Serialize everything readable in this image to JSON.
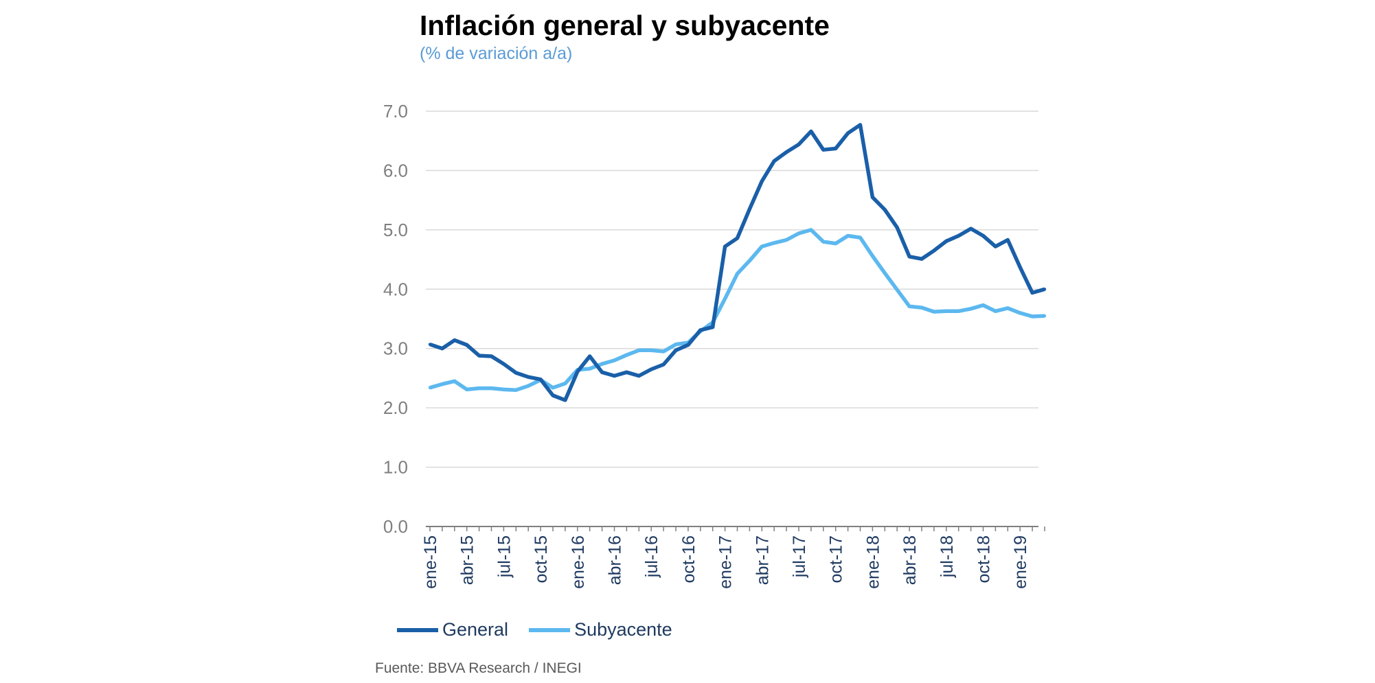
{
  "header": {
    "title": "Inflación general y subyacente",
    "subtitle": "(% de variación a/a)"
  },
  "colors": {
    "general": "#1a5fa8",
    "subyacente": "#5cb8ef",
    "grid": "#d9d9d9",
    "subtitle": "#5b9bd5"
  },
  "source": "Fuente: BBVA Research / INEGI",
  "chart_data": {
    "type": "line",
    "title": "Inflación general y subyacente",
    "subtitle": "(% de variación a/a)",
    "xlabel": "",
    "ylabel": "",
    "ylim": [
      0,
      7
    ],
    "yticks": [
      "0.0",
      "1.0",
      "2.0",
      "3.0",
      "4.0",
      "5.0",
      "6.0",
      "7.0"
    ],
    "grid": true,
    "legend_position": "bottom",
    "x": [
      "ene-15",
      "feb-15",
      "mar-15",
      "abr-15",
      "may-15",
      "jun-15",
      "jul-15",
      "ago-15",
      "sep-15",
      "oct-15",
      "nov-15",
      "dic-15",
      "ene-16",
      "feb-16",
      "mar-16",
      "abr-16",
      "may-16",
      "jun-16",
      "jul-16",
      "ago-16",
      "sep-16",
      "oct-16",
      "nov-16",
      "dic-16",
      "ene-17",
      "feb-17",
      "mar-17",
      "abr-17",
      "may-17",
      "jun-17",
      "jul-17",
      "ago-17",
      "sep-17",
      "oct-17",
      "nov-17",
      "dic-17",
      "ene-18",
      "feb-18",
      "mar-18",
      "abr-18",
      "may-18",
      "jun-18",
      "jul-18",
      "ago-18",
      "sep-18",
      "oct-18",
      "nov-18",
      "dic-18",
      "ene-19",
      "feb-19",
      "mar-19"
    ],
    "xtick_labels": [
      "ene-15",
      "abr-15",
      "jul-15",
      "oct-15",
      "ene-16",
      "abr-16",
      "jul-16",
      "oct-16",
      "ene-17",
      "abr-17",
      "jul-17",
      "oct-17",
      "ene-18",
      "abr-18",
      "jul-18",
      "oct-18",
      "ene-19"
    ],
    "series": [
      {
        "name": "General",
        "values": [
          3.07,
          3.0,
          3.14,
          3.06,
          2.88,
          2.87,
          2.74,
          2.59,
          2.52,
          2.48,
          2.21,
          2.13,
          2.61,
          2.87,
          2.6,
          2.54,
          2.6,
          2.54,
          2.65,
          2.73,
          2.97,
          3.06,
          3.31,
          3.36,
          4.72,
          4.86,
          5.35,
          5.82,
          6.16,
          6.31,
          6.44,
          6.66,
          6.35,
          6.37,
          6.63,
          6.77,
          5.55,
          5.34,
          5.04,
          4.55,
          4.51,
          4.65,
          4.81,
          4.9,
          5.02,
          4.9,
          4.72,
          4.83,
          4.37,
          3.94,
          4.0
        ]
      },
      {
        "name": "Subyacente",
        "values": [
          2.34,
          2.4,
          2.45,
          2.31,
          2.33,
          2.33,
          2.31,
          2.3,
          2.37,
          2.47,
          2.34,
          2.41,
          2.64,
          2.66,
          2.74,
          2.8,
          2.89,
          2.97,
          2.97,
          2.95,
          3.07,
          3.1,
          3.29,
          3.44,
          3.84,
          4.26,
          4.48,
          4.72,
          4.78,
          4.83,
          4.94,
          5.0,
          4.8,
          4.77,
          4.9,
          4.87,
          4.56,
          4.27,
          3.99,
          3.71,
          3.69,
          3.62,
          3.63,
          3.63,
          3.67,
          3.73,
          3.63,
          3.68,
          3.6,
          3.54,
          3.55
        ]
      }
    ]
  }
}
